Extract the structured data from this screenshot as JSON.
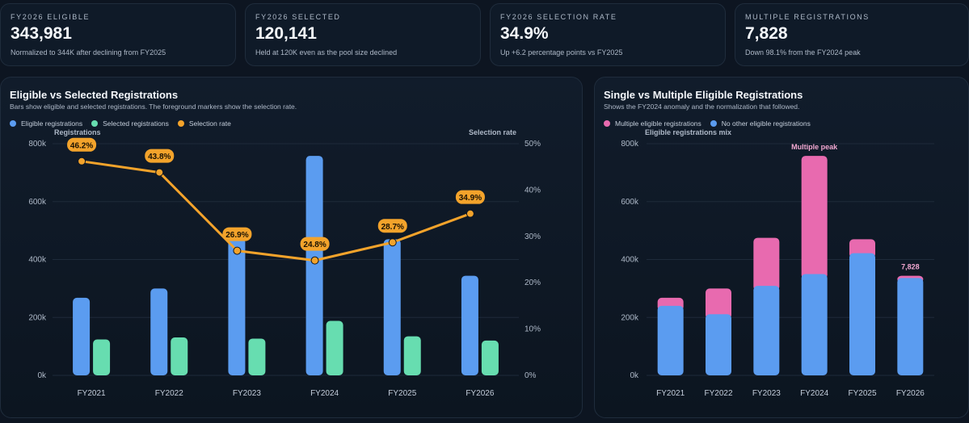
{
  "kpis": [
    {
      "label": "FY2026 ELIGIBLE",
      "value": "343,981",
      "desc": "Normalized to 344K after declining from FY2025"
    },
    {
      "label": "FY2026 SELECTED",
      "value": "120,141",
      "desc": "Held at 120K even as the pool size declined"
    },
    {
      "label": "FY2026 SELECTION RATE",
      "value": "34.9%",
      "desc": "Up +6.2 percentage points vs FY2025"
    },
    {
      "label": "MULTIPLE REGISTRATIONS",
      "value": "7,828",
      "desc": "Down 98.1% from the FY2024 peak"
    }
  ],
  "left_panel": {
    "title": "Eligible vs Selected Registrations",
    "subtitle": "Bars show eligible and selected registrations. The foreground markers show the selection rate.",
    "legend": [
      {
        "label": "Eligible registrations",
        "color": "#5b9cf0"
      },
      {
        "label": "Selected registrations",
        "color": "#67ddb0"
      },
      {
        "label": "Selection rate",
        "color": "#f3a32b"
      }
    ]
  },
  "right_panel": {
    "title": "Single vs Multiple Eligible Registrations",
    "subtitle": "Shows the FY2024 anomaly and the normalization that followed.",
    "legend": [
      {
        "label": "Multiple eligible registrations",
        "color": "#e86aaf"
      },
      {
        "label": "No other eligible registrations",
        "color": "#5b9cf0"
      }
    ]
  },
  "chart_data": [
    {
      "type": "bar",
      "categories": [
        "FY2021",
        "FY2022",
        "FY2023",
        "FY2024",
        "FY2025",
        "FY2026"
      ],
      "ylabel": "Registrations",
      "y2label": "Selection rate",
      "ylim": [
        0,
        800000
      ],
      "y2lim": [
        0,
        50
      ],
      "yticks": [
        "0k",
        "200k",
        "400k",
        "600k",
        "800k"
      ],
      "y2ticks": [
        "0%",
        "10%",
        "20%",
        "30%",
        "40%",
        "50%"
      ],
      "grid": true,
      "legend_position": "top-left",
      "series": [
        {
          "name": "Eligible registrations",
          "type": "bar",
          "color": "#5b9cf0",
          "values": [
            268000,
            300000,
            475000,
            758000,
            470000,
            343981
          ]
        },
        {
          "name": "Selected registrations",
          "type": "bar",
          "color": "#67ddb0",
          "values": [
            124000,
            131000,
            127000,
            188000,
            135000,
            120141
          ]
        },
        {
          "name": "Selection rate",
          "type": "line",
          "axis": "right",
          "color": "#f3a32b",
          "values": [
            46.2,
            43.8,
            26.9,
            24.8,
            28.7,
            34.9
          ],
          "labels": [
            "46.2%",
            "43.8%",
            "26.9%",
            "24.8%",
            "28.7%",
            "34.9%"
          ]
        }
      ]
    },
    {
      "type": "bar",
      "stacked": true,
      "categories": [
        "FY2021",
        "FY2022",
        "FY2023",
        "FY2024",
        "FY2025",
        "FY2026"
      ],
      "ylabel": "Eligible registrations mix",
      "ylim": [
        0,
        800000
      ],
      "yticks": [
        "0k",
        "200k",
        "400k",
        "600k",
        "800k"
      ],
      "grid": true,
      "legend_position": "top-left",
      "series": [
        {
          "name": "No other eligible registrations",
          "color": "#5b9cf0",
          "values": [
            240000,
            211000,
            309000,
            350000,
            422000,
            336153
          ]
        },
        {
          "name": "Multiple eligible registrations",
          "color": "#e86aaf",
          "values": [
            28000,
            89000,
            166000,
            408000,
            48000,
            7828
          ]
        }
      ],
      "annotations": [
        {
          "category": "FY2024",
          "text": "Multiple peak"
        },
        {
          "category": "FY2026",
          "text": "7,828"
        }
      ]
    }
  ]
}
